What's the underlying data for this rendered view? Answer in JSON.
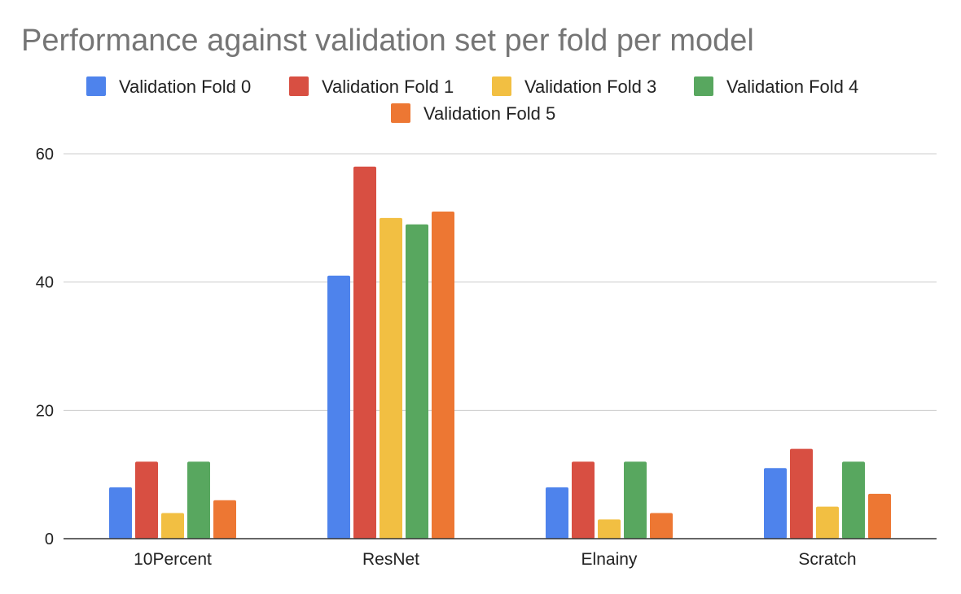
{
  "chart_data": {
    "type": "bar",
    "title": "Performance against validation set per fold per model",
    "xlabel": "",
    "ylabel": "",
    "categories": [
      "10Percent",
      "ResNet",
      "Elnainy",
      "Scratch"
    ],
    "series": [
      {
        "name": "Validation Fold 0",
        "color": "#4e83ec",
        "values": [
          8,
          41,
          8,
          11
        ]
      },
      {
        "name": "Validation Fold 1",
        "color": "#d84f42",
        "values": [
          12,
          58,
          12,
          14
        ]
      },
      {
        "name": "Validation Fold 3",
        "color": "#f2bf42",
        "values": [
          4,
          50,
          3,
          5
        ]
      },
      {
        "name": "Validation Fold 4",
        "color": "#58a75f",
        "values": [
          12,
          49,
          12,
          12
        ]
      },
      {
        "name": "Validation Fold 5",
        "color": "#ed7733",
        "values": [
          6,
          51,
          4,
          7
        ]
      }
    ],
    "ylim": [
      0,
      60
    ],
    "yticks": [
      "0",
      "20",
      "40",
      "60"
    ],
    "grid": true,
    "legend_position": "top"
  }
}
